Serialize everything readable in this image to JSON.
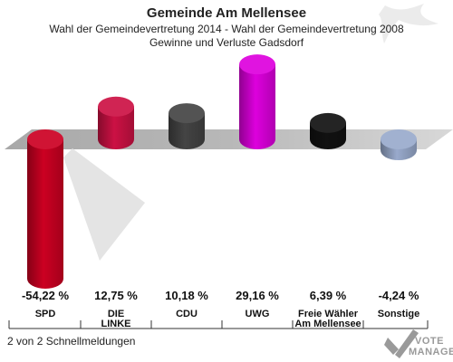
{
  "chart_data": {
    "type": "bar",
    "title": "Gemeinde Am Mellensee",
    "subtitle_lines": [
      "Wahl der Gemeindevertretung 2014 - Wahl der Gemeindevertretung 2008",
      "Gewinne und Verluste Gadsdorf"
    ],
    "categories": [
      [
        "SPD"
      ],
      [
        "DIE",
        "LINKE"
      ],
      [
        "CDU"
      ],
      [
        "UWG"
      ],
      [
        "Freie Wähler",
        "Am Mellensee"
      ],
      [
        "Sonstige"
      ]
    ],
    "values": [
      -54.22,
      12.75,
      10.18,
      29.16,
      6.39,
      -4.24
    ],
    "value_labels": [
      "-54,22 %",
      "12,75 %",
      "10,18 %",
      "29,16 %",
      "6,39 %",
      "-4,24 %"
    ],
    "colors": [
      "#cc0022",
      "#cc1144",
      "#444444",
      "#dd00dd",
      "#111111",
      "#99aacc"
    ],
    "baseline": 0,
    "ylim": [
      -54.22,
      29.16
    ],
    "grid": false,
    "legend": "none"
  },
  "footer": {
    "left_text": "2 von 2 Schnellmeldungen",
    "logo_text_line1": "VOTE",
    "logo_text_line2": "MANAGER"
  }
}
